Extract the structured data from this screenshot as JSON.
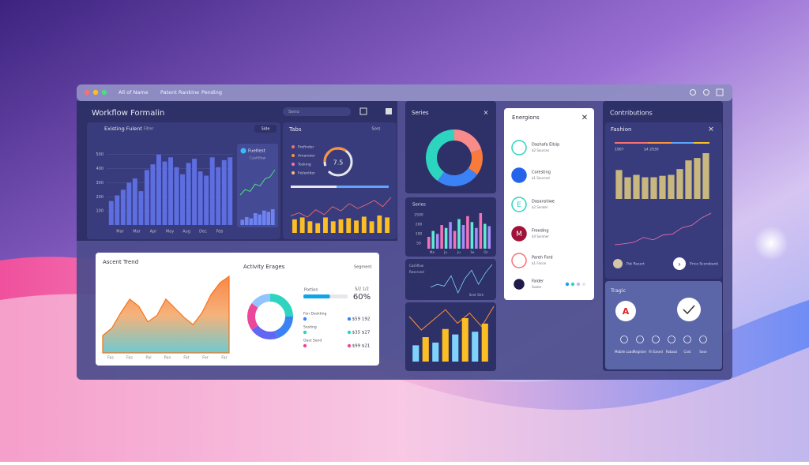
{
  "window": {
    "tabs": [
      "All of Name",
      "Patent Rankine",
      "Pending"
    ],
    "search": "Seno"
  },
  "workflow": {
    "title": "Workflow Formalin",
    "card": {
      "title": "Existing Fulent",
      "filter": "Filter",
      "button": "Side",
      "ylim": [
        0,
        560
      ],
      "yticks": [
        500,
        400,
        300,
        200,
        100
      ],
      "color": "#5d6ee0",
      "x_labels": [
        "Mar",
        "Mar",
        "Apr",
        "May",
        "Aug",
        "Dec",
        "Feb"
      ],
      "values": [
        170,
        210,
        250,
        300,
        330,
        240,
        390,
        430,
        500,
        450,
        480,
        410,
        360,
        440,
        470,
        380,
        350,
        480,
        410,
        460,
        480
      ]
    },
    "mini": {
      "title": "Fueltest",
      "subtitle": "Cashflow",
      "line": [
        20,
        35,
        30,
        50,
        45,
        65,
        70,
        90
      ],
      "bars": [
        20,
        30,
        25,
        45,
        40,
        55,
        50,
        60
      ]
    }
  },
  "tabs": {
    "title": "Tabs",
    "sort": "Sors",
    "legend": [
      "Prefinder",
      "Amanoier",
      "Tosking",
      "Feilenlder"
    ],
    "legend_colors": [
      "#f87171",
      "#fb923c",
      "#f472b6",
      "#fdba74"
    ],
    "gauge": 7.5,
    "bars": [
      35,
      40,
      30,
      25,
      40,
      30,
      35,
      38,
      32,
      42,
      30,
      45,
      40
    ],
    "line": [
      40,
      45,
      38,
      50,
      42,
      55,
      48,
      60,
      52,
      58,
      65,
      55,
      70
    ]
  },
  "report": {
    "title": "Ascent Trend",
    "x_labels": [
      "Fas",
      "Fas",
      "Pal",
      "Pan",
      "Fat",
      "Fer",
      "Far"
    ],
    "area": [
      30,
      38,
      55,
      70,
      62,
      45,
      52,
      70,
      60,
      50,
      42,
      55,
      75,
      88,
      95
    ]
  },
  "activity": {
    "title": "Activity Erages",
    "segment": "Segment",
    "donut": {
      "values": [
        25,
        20,
        20,
        20,
        15
      ],
      "colors": [
        "#2dd4bf",
        "#3b82f6",
        "#6366f1",
        "#ec4899",
        "#93c5fd"
      ]
    },
    "progress": {
      "label": "Portion",
      "ratio": "S/2 1/2",
      "value": 60,
      "value_label": "60%",
      "xlim": [
        0,
        100
      ]
    },
    "rows": [
      {
        "label": "Fon Dsekting",
        "value": "$59 192"
      },
      {
        "label": "Sosting",
        "value": "$35 $27"
      },
      {
        "label": "Oast Send",
        "value": "$99 $21"
      }
    ],
    "row_colors": [
      "#3b82f6",
      "#2dd4bf",
      "#ec4899"
    ]
  },
  "series": {
    "title": "Series",
    "donut": {
      "values": [
        20,
        15,
        25,
        40
      ],
      "colors": [
        "#f98b8b",
        "#f97b3c",
        "#3b82f6",
        "#2dd4bf"
      ]
    }
  },
  "series2": {
    "title": "Series",
    "y_labels": [
      "2500",
      "200",
      "100",
      "50"
    ],
    "x_labels": [
      "Ma",
      "Ju",
      "Ju",
      "Se",
      "Oc"
    ],
    "bars": [
      20,
      30,
      25,
      40,
      35,
      45,
      30,
      50,
      40,
      55,
      45,
      35,
      60,
      42,
      38
    ],
    "colors": [
      "#f472b6",
      "#5eead4",
      "#a78bfa"
    ]
  },
  "series3": {
    "labels": [
      "Cashflow",
      "Reserved"
    ],
    "foot": "Sent Strk",
    "line": [
      40,
      45,
      42,
      60,
      30,
      55,
      70,
      45,
      65,
      80
    ]
  },
  "series4": {
    "line": [
      60,
      40,
      55,
      70,
      50,
      65,
      45,
      75
    ],
    "bars": [
      30,
      45,
      35,
      60,
      50,
      80,
      55,
      70
    ],
    "colors": [
      "#7dd3fc",
      "#fbbf24"
    ]
  },
  "energions": {
    "title": "Energions",
    "items": [
      {
        "name": "Dashafa Ellsip",
        "sub": "$2 Sources"
      },
      {
        "name": "Coresting",
        "sub": "$1 Sourced"
      },
      {
        "icon": "E",
        "name": "Dasanstiwe",
        "sub": "$2 Sender"
      },
      {
        "icon": "M",
        "name": "Freeding",
        "sub": "$4 Sonmer"
      },
      {
        "name": "Pareh Ford",
        "sub": "$1 Fonce"
      },
      {
        "name": "Faider",
        "sub": "Sooke"
      }
    ],
    "colors": [
      "#2dd4bf",
      "#2563eb",
      "#2dd4bf",
      "#9f1239",
      "#f87171",
      "#1e1b4b"
    ]
  },
  "contrib": {
    "title": "Contributions",
    "fashion": {
      "title": "Fashion",
      "legend": [
        "1907",
        "$4 2030"
      ],
      "bars": [
        60,
        45,
        50,
        45,
        45,
        48,
        50,
        62,
        80,
        85,
        95
      ],
      "line": [
        20,
        22,
        25,
        35,
        30,
        40,
        42,
        55,
        60,
        75,
        85
      ],
      "footer": [
        "Pat Resert",
        "Price Scorebank"
      ]
    },
    "tragic": {
      "title": "Tragic",
      "badge": "A",
      "icons": [
        "Mobile Load",
        "Register",
        "Fil Eased",
        "Robaut",
        "Cost",
        "Sose"
      ]
    }
  }
}
